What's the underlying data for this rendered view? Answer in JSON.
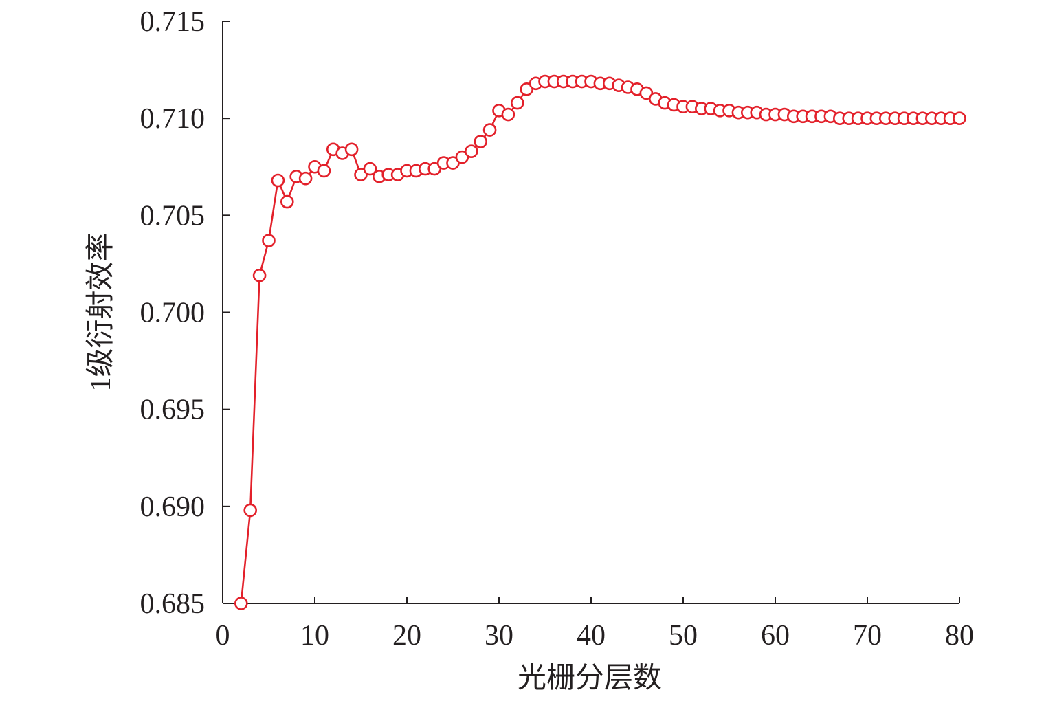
{
  "chart_data": {
    "type": "line",
    "title": "",
    "xlabel": "光栅分层数",
    "ylabel": "1级衍射效率",
    "xlim": [
      0,
      80
    ],
    "ylim": [
      0.685,
      0.715
    ],
    "xticks": [
      0,
      10,
      20,
      30,
      40,
      50,
      60,
      70,
      80
    ],
    "xtick_labels": [
      "0",
      "10",
      "20",
      "30",
      "40",
      "50",
      "60",
      "70",
      "80"
    ],
    "yticks": [
      0.685,
      0.69,
      0.695,
      0.7,
      0.705,
      0.71,
      0.715
    ],
    "ytick_labels": [
      "0.685",
      "0.690",
      "0.695",
      "0.700",
      "0.705",
      "0.710",
      "0.715"
    ],
    "grid": false,
    "marker": "open-circle",
    "line_color": "#e3202a",
    "series": [
      {
        "x": [
          2,
          3,
          4,
          5,
          6,
          7,
          8,
          9,
          10,
          11,
          12,
          13,
          14,
          15,
          16,
          17,
          18,
          19,
          20,
          21,
          22,
          23,
          24,
          25,
          26,
          27,
          28,
          29,
          30,
          31,
          32,
          33,
          34,
          35,
          36,
          37,
          38,
          39,
          40,
          41,
          42,
          43,
          44,
          45,
          46,
          47,
          48,
          49,
          50,
          51,
          52,
          53,
          54,
          55,
          56,
          57,
          58,
          59,
          60,
          61,
          62,
          63,
          64,
          65,
          66,
          67,
          68,
          69,
          70,
          71,
          72,
          73,
          74,
          75,
          76,
          77,
          78,
          79,
          80
        ],
        "values": [
          0.685,
          0.6898,
          0.7019,
          0.7037,
          0.7068,
          0.7057,
          0.707,
          0.7069,
          0.7075,
          0.7073,
          0.7084,
          0.7082,
          0.7084,
          0.7071,
          0.7074,
          0.707,
          0.7071,
          0.7071,
          0.7073,
          0.7073,
          0.7074,
          0.7074,
          0.7077,
          0.7077,
          0.708,
          0.7083,
          0.7088,
          0.7094,
          0.7104,
          0.7102,
          0.7108,
          0.7115,
          0.7118,
          0.7119,
          0.7119,
          0.7119,
          0.7119,
          0.7119,
          0.7119,
          0.7118,
          0.7118,
          0.7117,
          0.7116,
          0.7115,
          0.7113,
          0.711,
          0.7108,
          0.7107,
          0.7106,
          0.7106,
          0.7105,
          0.7105,
          0.7104,
          0.7104,
          0.7103,
          0.7103,
          0.7103,
          0.7102,
          0.7102,
          0.7102,
          0.7101,
          0.7101,
          0.7101,
          0.7101,
          0.7101,
          0.71,
          0.71,
          0.71,
          0.71,
          0.71,
          0.71,
          0.71,
          0.71,
          0.71,
          0.71,
          0.71,
          0.71,
          0.71,
          0.71
        ]
      }
    ]
  }
}
